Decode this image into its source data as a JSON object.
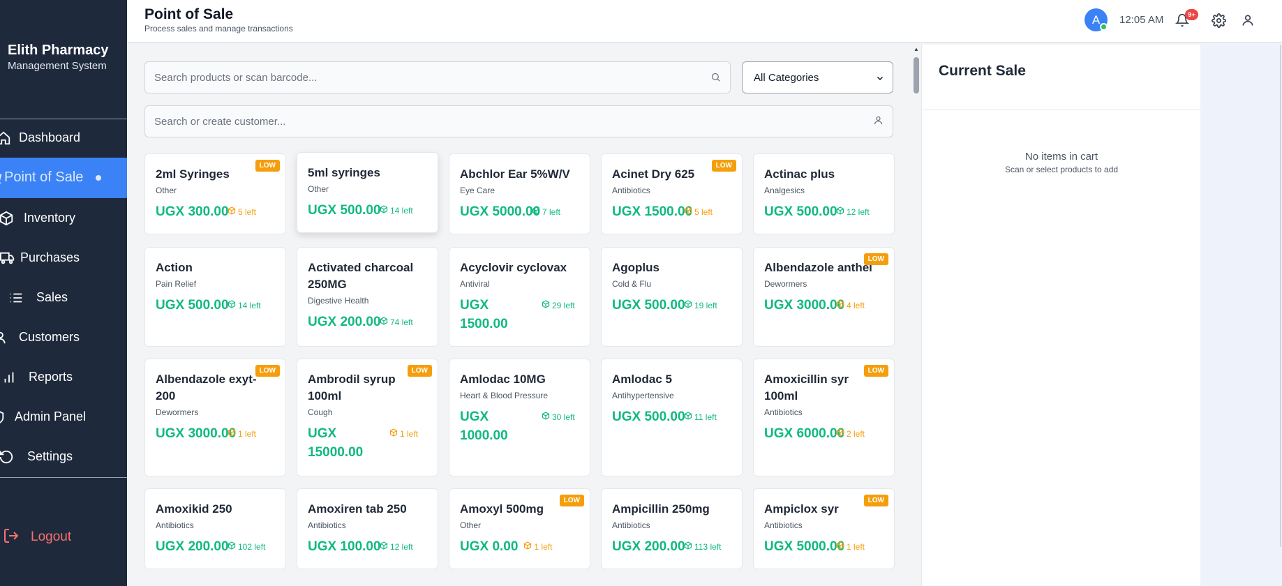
{
  "brand": {
    "name": "Elith Pharmacy",
    "subtitle": "Management System"
  },
  "nav": {
    "items": [
      {
        "label": "Dashboard",
        "icon": "home-icon"
      },
      {
        "label": "Point of Sale",
        "icon": "cart-icon",
        "active": true
      },
      {
        "label": "Inventory",
        "icon": "box-icon"
      },
      {
        "label": "Purchases",
        "icon": "truck-icon"
      },
      {
        "label": "Sales",
        "icon": "list-icon"
      },
      {
        "label": "Customers",
        "icon": "users-icon"
      },
      {
        "label": "Reports",
        "icon": "bar-chart-icon"
      },
      {
        "label": "Admin Panel",
        "icon": "shield-icon"
      },
      {
        "label": "Settings",
        "icon": "refresh-icon"
      }
    ],
    "logout": "Logout"
  },
  "header": {
    "title": "Point of Sale",
    "subtitle": "Process sales and manage transactions",
    "avatar_initial": "A",
    "time": "12:05 AM",
    "notification_count": "9+"
  },
  "search": {
    "placeholder": "Search products or scan barcode..."
  },
  "category_filter": {
    "selected": "All Categories"
  },
  "customer": {
    "placeholder": "Search or create customer..."
  },
  "products": [
    {
      "name": "2ml Syringes",
      "category": "Other",
      "price": "UGX 300.00",
      "stock": "5 left",
      "low": true
    },
    {
      "name": "5ml syringes",
      "category": "Other",
      "price": "UGX 500.00",
      "stock": "14 left",
      "low": false
    },
    {
      "name": "Abchlor Ear 5%W/V",
      "category": "Eye Care",
      "price": "UGX 5000.00",
      "stock": "7 left",
      "low": false
    },
    {
      "name": "Acinet Dry 625",
      "category": "Antibiotics",
      "price": "UGX 1500.00",
      "stock": "5 left",
      "low": true
    },
    {
      "name": "Actinac plus",
      "category": "Analgesics",
      "price": "UGX 500.00",
      "stock": "12 left",
      "low": false
    },
    {
      "name": "Action",
      "category": "Pain Relief",
      "price": "UGX 500.00",
      "stock": "14 left",
      "low": false
    },
    {
      "name": "Activated charcoal 250MG",
      "category": "Digestive Health",
      "price": "UGX 200.00",
      "stock": "74 left",
      "low": false
    },
    {
      "name": "Acyclovir cyclovax",
      "category": "Antiviral",
      "price": "UGX 1500.00",
      "stock": "29 left",
      "low": false
    },
    {
      "name": "Agoplus",
      "category": "Cold & Flu",
      "price": "UGX 500.00",
      "stock": "19 left",
      "low": false
    },
    {
      "name": "Albendazole anthel",
      "category": "Dewormers",
      "price": "UGX 3000.00",
      "stock": "4 left",
      "low": true
    },
    {
      "name": "Albendazole exyt-200",
      "category": "Dewormers",
      "price": "UGX 3000.00",
      "stock": "1 left",
      "low": true
    },
    {
      "name": "Ambrodil syrup 100ml",
      "category": "Cough",
      "price": "UGX 15000.00",
      "stock": "1 left",
      "low": true
    },
    {
      "name": "Amlodac 10MG",
      "category": "Heart & Blood Pressure",
      "price": "UGX 1000.00",
      "stock": "30 left",
      "low": false
    },
    {
      "name": "Amlodac 5",
      "category": "Antihypertensive",
      "price": "UGX 500.00",
      "stock": "11 left",
      "low": false
    },
    {
      "name": "Amoxicillin syr 100ml",
      "category": "Antibiotics",
      "price": "UGX 6000.00",
      "stock": "2 left",
      "low": true
    },
    {
      "name": "Amoxikid 250",
      "category": "Antibiotics",
      "price": "UGX 200.00",
      "stock": "102 left",
      "low": false
    },
    {
      "name": "Amoxiren tab 250",
      "category": "Antibiotics",
      "price": "UGX 100.00",
      "stock": "12 left",
      "low": false
    },
    {
      "name": "Amoxyl 500mg",
      "category": "Other",
      "price": "UGX 0.00",
      "stock": "1 left",
      "low": true
    },
    {
      "name": "Ampicillin 250mg",
      "category": "Antibiotics",
      "price": "UGX 200.00",
      "stock": "113 left",
      "low": false
    },
    {
      "name": "Ampiclox syr",
      "category": "Antibiotics",
      "price": "UGX 5000.00",
      "stock": "1 left",
      "low": true
    }
  ],
  "low_badge_label": "LOW",
  "sale": {
    "title": "Current Sale",
    "empty_title": "No items in cart",
    "empty_hint": "Scan or select products to add"
  },
  "colors": {
    "sidebar_bg": "#1e293b",
    "accent": "#3b82f6",
    "price_green": "#10b981",
    "low_amber": "#f59e0b",
    "logout_red": "#f87171"
  }
}
